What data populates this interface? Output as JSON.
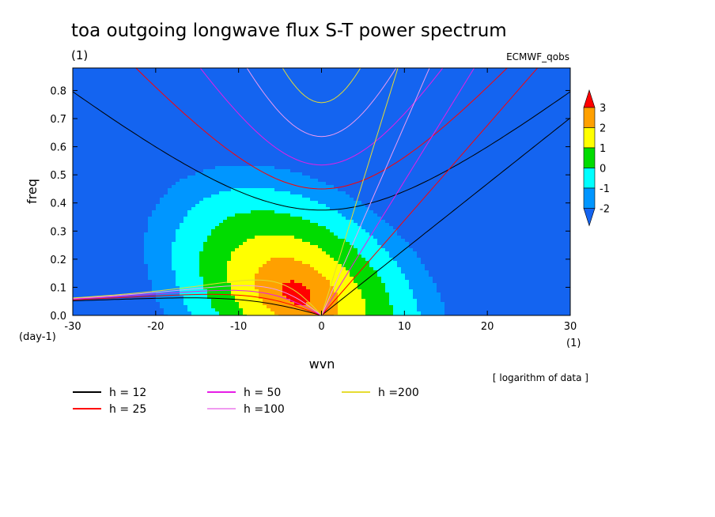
{
  "title": "toa outgoing longwave flux S-T power spectrum",
  "units_label": "(1)",
  "dataset": "ECMWF_qobs",
  "note": "[ logarithm of data ]",
  "chart_data": {
    "type": "heatmap",
    "xlabel": "wvn",
    "ylabel": "freq",
    "x_unit": "(1)",
    "y_unit": "(day-1)",
    "xlim": [
      -30,
      30
    ],
    "ylim": [
      0,
      0.88
    ],
    "xticks": [
      "-30",
      "-20",
      "-10",
      "0",
      "10",
      "20",
      "30"
    ],
    "yticks": [
      "0.0",
      "0.1",
      "0.2",
      "0.3",
      "0.4",
      "0.5",
      "0.6",
      "0.7",
      "0.8"
    ],
    "colorbar": {
      "labels": [
        "3",
        "2",
        "1",
        "0",
        "-1",
        "-2"
      ],
      "levels": [
        -2,
        -1,
        0,
        1,
        2,
        3
      ],
      "colors": [
        "#1464f0",
        "#0096ff",
        "#00ffff",
        "#00dc00",
        "#ffff00",
        "#ffa000",
        "#ff0000"
      ]
    },
    "spectrum": {
      "peak_wavenumber": -3,
      "peak_freq": 0.08,
      "peak_log_power": 3.5
    },
    "dispersion_curves": [
      {
        "name": "h = 12",
        "h": 12,
        "color": "#000000"
      },
      {
        "name": "h = 25",
        "h": 25,
        "color": "#ff0000"
      },
      {
        "name": "h = 50",
        "h": 50,
        "color": "#e61ee6"
      },
      {
        "name": "h =100",
        "h": 100,
        "color": "#f09bf0"
      },
      {
        "name": "h =200",
        "h": 200,
        "color": "#e6dc32"
      }
    ]
  }
}
